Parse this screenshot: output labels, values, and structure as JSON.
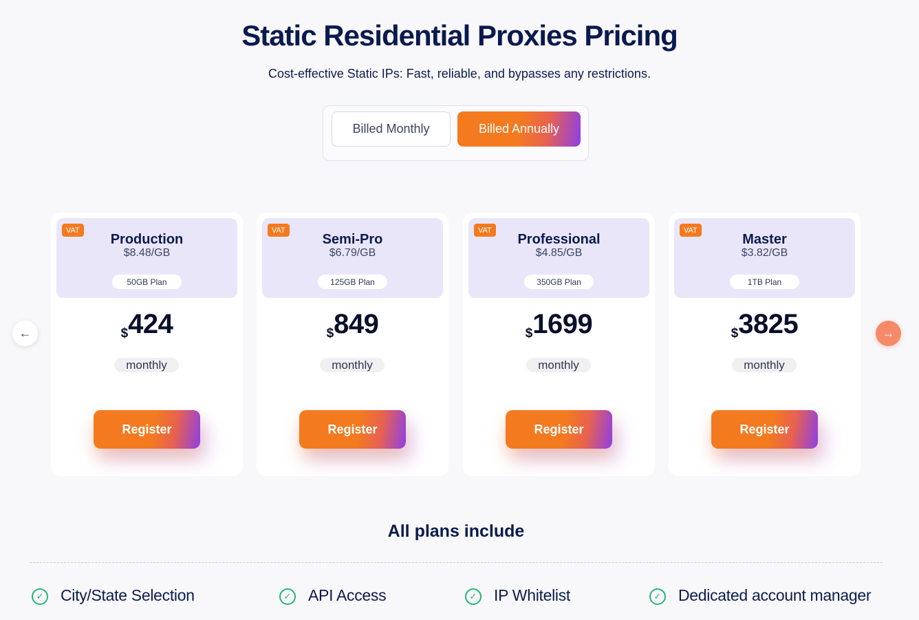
{
  "header": {
    "title": "Static Residential Proxies Pricing",
    "subtitle": "Cost-effective Static IPs: Fast, reliable, and bypasses any restrictions."
  },
  "billing": {
    "monthly_label": "Billed Monthly",
    "annually_label": "Billed Annually",
    "selected": "Billed Annually"
  },
  "colors": {
    "accent_orange": "#f47a1f",
    "accent_purple": "#8d3fe6",
    "card_header": "#e9e6f9",
    "check_green": "#22b573"
  },
  "carousel": {
    "prev_icon": "arrow-left-icon",
    "next_icon": "arrow-right-icon"
  },
  "plans": [
    {
      "badge": "VAT",
      "name": "Production",
      "rate": "$8.48/GB",
      "size": "50GB Plan",
      "currency": "$",
      "price": "424",
      "period": "monthly",
      "button": "Register"
    },
    {
      "badge": "VAT",
      "name": "Semi-Pro",
      "rate": "$6.79/GB",
      "size": "125GB Plan",
      "currency": "$",
      "price": "849",
      "period": "monthly",
      "button": "Register"
    },
    {
      "badge": "VAT",
      "name": "Professional",
      "rate": "$4.85/GB",
      "size": "350GB Plan",
      "currency": "$",
      "price": "1699",
      "period": "monthly",
      "button": "Register"
    },
    {
      "badge": "VAT",
      "name": "Master",
      "rate": "$3.82/GB",
      "size": "1TB Plan",
      "currency": "$",
      "price": "3825",
      "period": "monthly",
      "button": "Register"
    }
  ],
  "includes": {
    "title": "All plans include",
    "features": [
      "City/State Selection",
      "API Access",
      "IP Whitelist",
      "Dedicated account manager"
    ]
  }
}
